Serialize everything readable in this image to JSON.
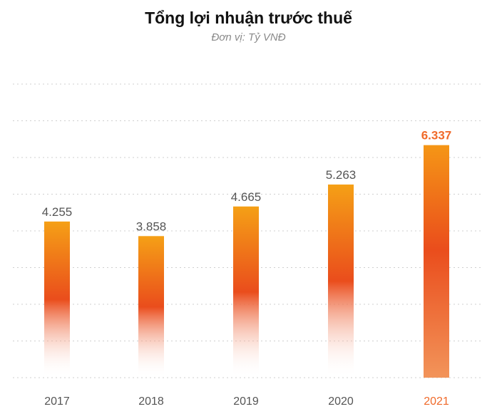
{
  "chart_data": {
    "type": "bar",
    "title": "Tổng lợi nhuận trước thuế",
    "subtitle": "Đơn vị: Tỷ VNĐ",
    "categories": [
      "2017",
      "2018",
      "2019",
      "2020",
      "2021"
    ],
    "values": [
      4255,
      3858,
      4665,
      5263,
      6337
    ],
    "value_labels": [
      "4.255",
      "3.858",
      "4.665",
      "5.263",
      "6.337"
    ],
    "highlight_index": 4,
    "ylim": [
      0,
      8000
    ],
    "grid": true,
    "legend": "none",
    "colors": {
      "bar_top": "#f5a016",
      "bar_mid": "#ea4d1c",
      "highlight_label": "#f06a2a",
      "label": "#555555",
      "grid": "#cfcfcf"
    }
  }
}
